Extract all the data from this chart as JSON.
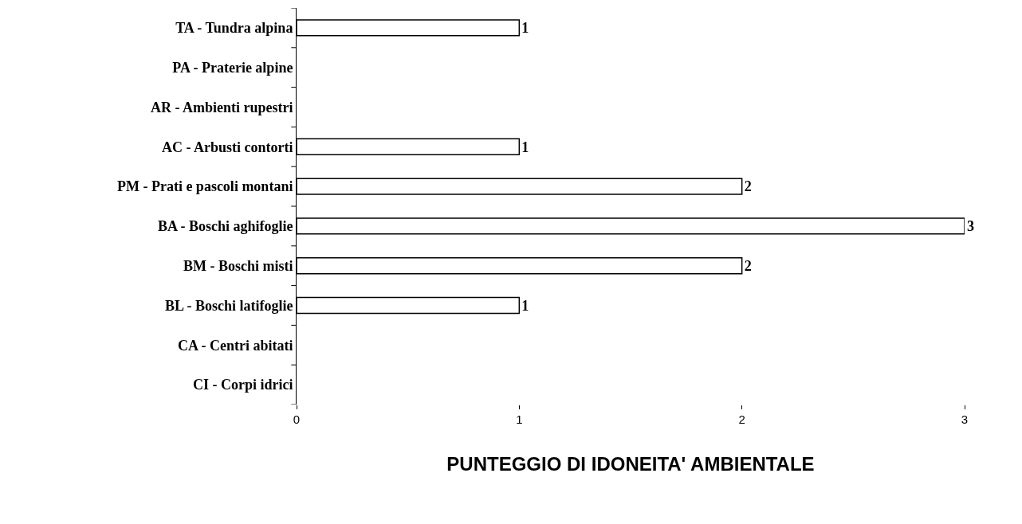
{
  "chart_data": {
    "type": "bar",
    "orientation": "horizontal",
    "xlabel": "PUNTEGGIO DI IDONEITA' AMBIENTALE",
    "categories": [
      "TA - Tundra alpina",
      "PA - Praterie alpine",
      "AR - Ambienti rupestri",
      "AC - Arbusti contorti",
      "PM - Prati e pascoli montani",
      "BA - Boschi aghifoglie",
      "BM - Boschi misti",
      "BL - Boschi latifoglie",
      "CA - Centri abitati",
      "CI - Corpi idrici"
    ],
    "values": [
      1,
      null,
      null,
      1,
      2,
      3,
      2,
      1,
      null,
      null
    ],
    "color": "#ffffff",
    "xlim": [
      0,
      3
    ],
    "xticks": [
      0,
      1,
      2,
      3
    ],
    "data_labels": true
  }
}
